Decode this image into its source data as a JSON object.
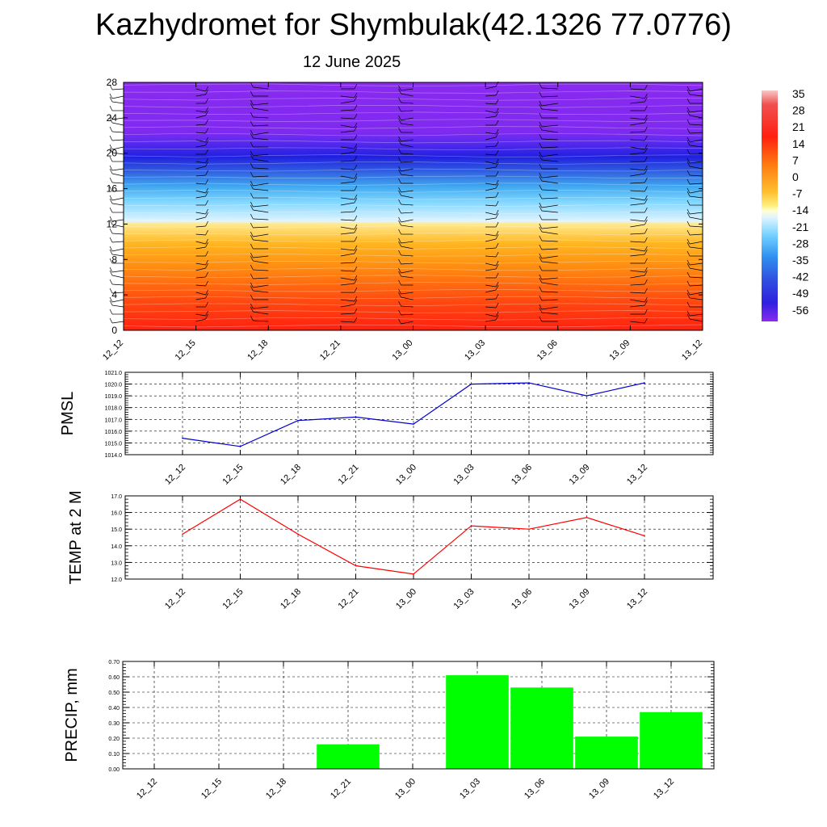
{
  "title": "Kazhydromet for Shymbulak(42.1326 77.0776)",
  "subtitle": "12 June 2025",
  "colorbar": {
    "labels": [
      "35",
      "28",
      "21",
      "14",
      "7",
      "0",
      "-7",
      "-14",
      "-21",
      "-28",
      "-35",
      "-42",
      "-49",
      "-56"
    ]
  },
  "chart_data": [
    {
      "type": "heatmap",
      "x": [
        "12_12",
        "12_15",
        "12_18",
        "12_21",
        "13_00",
        "13_03",
        "13_06",
        "13_09",
        "13_12"
      ],
      "ylim": [
        0,
        28
      ],
      "yticks": [
        0,
        4,
        8,
        12,
        16,
        20,
        24,
        28
      ],
      "colorbar_range": [
        -56,
        35
      ],
      "grid": false,
      "legend": "right (colorbar)"
    },
    {
      "type": "line",
      "ylabel": "PMSL",
      "x": [
        "12_12",
        "12_15",
        "12_18",
        "12_21",
        "13_00",
        "13_03",
        "13_06",
        "13_09",
        "13_12"
      ],
      "values": [
        1015.4,
        1014.7,
        1016.9,
        1017.2,
        1016.6,
        1020.0,
        1020.1,
        1019.0,
        1020.1
      ],
      "ylim": [
        1014.0,
        1021.0
      ],
      "yticks": [
        "1014.0",
        "1015.0",
        "1016.0",
        "1017.0",
        "1018.0",
        "1019.0",
        "1020.0",
        "1021.0"
      ],
      "color": "#0000cc",
      "grid": true
    },
    {
      "type": "line",
      "ylabel": "TEMP at 2 M",
      "x": [
        "12_12",
        "12_15",
        "12_18",
        "12_21",
        "13_00",
        "13_03",
        "13_06",
        "13_09",
        "13_12"
      ],
      "values": [
        14.7,
        16.8,
        14.7,
        12.8,
        12.3,
        15.2,
        15.0,
        15.7,
        14.6
      ],
      "ylim": [
        12.0,
        17.0
      ],
      "yticks": [
        "12.0",
        "13.0",
        "14.0",
        "15.0",
        "16.0",
        "17.0"
      ],
      "color": "#ff0000",
      "grid": true
    },
    {
      "type": "bar",
      "ylabel": "PRECIP, mm",
      "categories": [
        "12_12",
        "12_15",
        "12_18",
        "12_21",
        "13_00",
        "13_03",
        "13_06",
        "13_09",
        "13_12"
      ],
      "values": [
        0,
        0,
        0,
        0.16,
        0,
        0.61,
        0.53,
        0.21,
        0.37
      ],
      "ylim": [
        0,
        0.7
      ],
      "yticks": [
        "0.00",
        "0.10",
        "0.20",
        "0.30",
        "0.40",
        "0.50",
        "0.60",
        "0.70"
      ],
      "color": "#00ff00",
      "grid": true
    }
  ]
}
